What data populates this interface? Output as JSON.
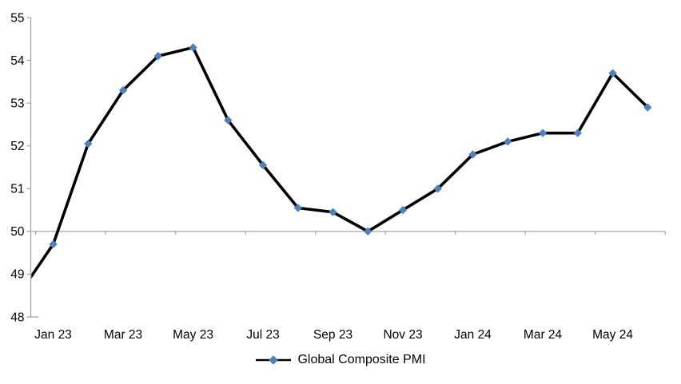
{
  "chart_data": {
    "type": "line",
    "title": "",
    "legend_position": "bottom",
    "series": [
      {
        "name": "Global Composite PMI",
        "values": [
          48.5,
          49.7,
          52.05,
          53.3,
          54.1,
          54.3,
          52.6,
          51.55,
          50.55,
          50.45,
          50.0,
          50.5,
          51.0,
          51.8,
          52.1,
          52.3,
          52.3,
          53.7,
          52.9
        ]
      }
    ],
    "categories": [
      "Dec 22",
      "Jan 23",
      "Feb 23",
      "Mar 23",
      "Apr 23",
      "May 23",
      "Jun 23",
      "Jul 23",
      "Aug 23",
      "Sep 23",
      "Oct 23",
      "Nov 23",
      "Dec 23",
      "Jan 24",
      "Feb 24",
      "Mar 24",
      "Apr 24",
      "May 24",
      "Jun 24"
    ],
    "x_axis_tick_labels": [
      "Jan 23",
      "Mar 23",
      "May 23",
      "Jul 23",
      "Sep 23",
      "Nov 23",
      "Jan 24",
      "Mar 24",
      "May 24"
    ],
    "y_axis_ticks": [
      55,
      54,
      53,
      52,
      51,
      50,
      49,
      48
    ],
    "ylim": [
      48,
      55
    ],
    "reference_line_y": 50,
    "grid": "none",
    "marker": "diamond",
    "colors": {
      "line": "#000000",
      "marker": "#4F81BD",
      "axis": "#A6A6A6",
      "text": "#000000"
    }
  }
}
